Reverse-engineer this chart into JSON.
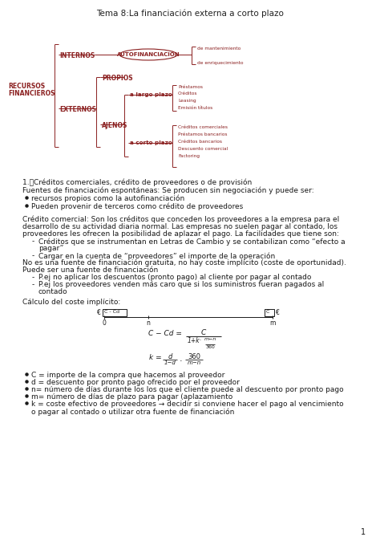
{
  "title": "Tema 8:La financiación externa a corto plazo",
  "bg_color": "#ffffff",
  "text_color": "#1a1a1a",
  "dark_red": "#8B2020",
  "page_number": "1",
  "diagram": {
    "recursos_financieros_line1": "RECURSOS",
    "recursos_financieros_line2": "FINANCIEROS",
    "internos": "INTERNOS",
    "autofinanciacion": "AUTOFINANCIACIÓN",
    "af_sub1": "de mantenimiento",
    "af_sub2": "de enriquecimiento",
    "externos": "EXTERNOS",
    "propios": "PROPIOS",
    "ajenos": "AJENOS",
    "largo_plazo": "a largo plazo",
    "largo_items": [
      "Préstamos",
      "Créditos",
      "Leasing",
      "Emisión títulos"
    ],
    "corto_plazo": "a corto plazo",
    "corto_items": [
      "Créditos comerciales",
      "Préstamos bancarios",
      "Créditos bancarios",
      "Descuento comercial",
      "Factoring"
    ]
  },
  "section1_title": "1.\tCréditos comerciales, crédito de proveedores o de provisión",
  "fuentes_text": "Fuentes de financiación espontáneas: Se producen sin negociación y puede ser:",
  "bullet1": "recursos propios como la autofinanciación",
  "bullet2": "Pueden provenir de terceros como crédito de proveedores",
  "cc_lines": [
    "Crédito comercial: Son los créditos que conceden los proveedores a la empresa para el",
    "desarrollo de su actividad diaria normal. Las empresas no suelen pagar al contado, los",
    "proveedores les ofrecen la posibilidad de aplazar el pago. La facilidades que tiene son:"
  ],
  "dash1a": "Créditos que se instrumentan en Letras de Cambio y se contabilizan como “efecto a",
  "dash1b": "pagar”",
  "dash2": "Cargar en la cuenta de “proveedores” el importe de la operación",
  "no_fuente_lines": [
    "No es una fuente de financiación gratuita, no hay coste implícito (coste de oportunidad).",
    "Puede ser una fuente de financiación"
  ],
  "dash3": "P.ej no aplicar los descuentos (pronto pago) al cliente por pagar al contado",
  "dash4a": "P.ej los proveedores venden más caro que si los suministros fueran pagados al",
  "dash4b": "contado",
  "calculo_title": "Cálculo del coste implícito:",
  "bullet_C": "C = importe de la compra que hacemos al proveedor",
  "bullet_d": "d = descuento por pronto pago ofrecido por el proveedor",
  "bullet_n": "n= número de días durante los los que el cliente puede al descuento por pronto pago",
  "bullet_m": "m= número de días de plazo para pagar (aplazamiento",
  "bullet_k1": "k = coste efectivo de proveedores → decidir si conviene hacer el pago al vencimiento",
  "bullet_k2": "o pagar al contado o utilizar otra fuente de financiación"
}
